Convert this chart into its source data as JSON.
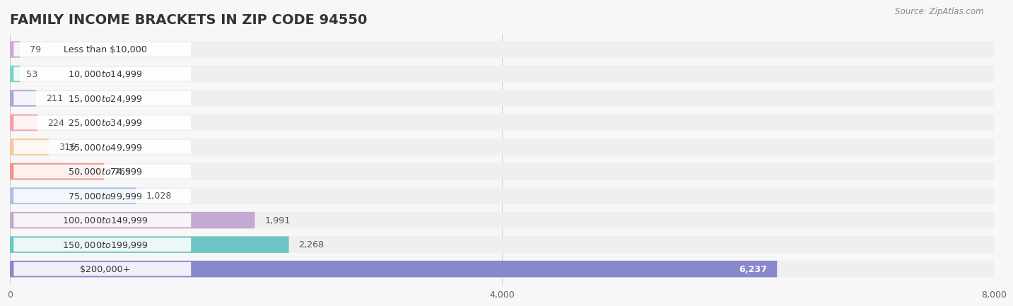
{
  "title": "FAMILY INCOME BRACKETS IN ZIP CODE 94550",
  "source": "Source: ZipAtlas.com",
  "categories": [
    "Less than $10,000",
    "$10,000 to $14,999",
    "$15,000 to $24,999",
    "$25,000 to $34,999",
    "$35,000 to $49,999",
    "$50,000 to $74,999",
    "$75,000 to $99,999",
    "$100,000 to $149,999",
    "$150,000 to $199,999",
    "$200,000+"
  ],
  "values": [
    79,
    53,
    211,
    224,
    316,
    765,
    1028,
    1991,
    2268,
    6237
  ],
  "bar_colors": [
    "#c9a8d4",
    "#7dd1c8",
    "#a9a8d8",
    "#f4a0b0",
    "#f7c99a",
    "#f0948a",
    "#a8c4e8",
    "#c4a8d4",
    "#6ec4c4",
    "#8888cc"
  ],
  "bg_color": "#f7f7f7",
  "bar_bg_color": "#e8e8e8",
  "row_bg_color": "#efefef",
  "xlim": [
    0,
    8000
  ],
  "xticks": [
    0,
    4000,
    8000
  ],
  "title_fontsize": 14,
  "source_fontsize": 8.5,
  "value_label_last_color": "#ffffff"
}
